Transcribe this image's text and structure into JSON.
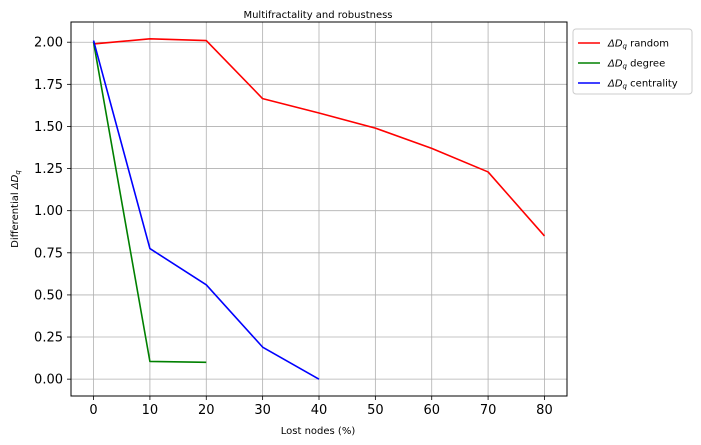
{
  "chart_data": {
    "type": "line",
    "title": "Multifractality and robustness",
    "xlabel": "Lost nodes (%)",
    "ylabel_prefix": "Differential ",
    "ylabel_symbol": "ΔD",
    "ylabel_subscript": "q",
    "xlim": [
      -4,
      84
    ],
    "ylim": [
      -0.1,
      2.12
    ],
    "xticks": [
      0,
      10,
      20,
      30,
      40,
      50,
      60,
      70,
      80
    ],
    "xtick_labels": [
      "0",
      "10",
      "20",
      "30",
      "40",
      "50",
      "60",
      "70",
      "80"
    ],
    "yticks": [
      0.0,
      0.25,
      0.5,
      0.75,
      1.0,
      1.25,
      1.5,
      1.75,
      2.0
    ],
    "ytick_labels": [
      "0.00",
      "0.25",
      "0.50",
      "0.75",
      "1.00",
      "1.25",
      "1.50",
      "1.75",
      "2.00"
    ],
    "grid": true,
    "legend_position": "outside-top-right",
    "series": [
      {
        "name": "random",
        "legend_symbol": "ΔD",
        "legend_subscript": "q",
        "legend_suffix": " random",
        "color": "#ff0000",
        "x": [
          0,
          10,
          20,
          30,
          40,
          50,
          60,
          70,
          80
        ],
        "y": [
          1.99,
          2.02,
          2.01,
          1.665,
          1.58,
          1.49,
          1.37,
          1.23,
          0.85
        ]
      },
      {
        "name": "degree",
        "legend_symbol": "ΔD",
        "legend_subscript": "q",
        "legend_suffix": " degree",
        "color": "#008000",
        "x": [
          0,
          10,
          20
        ],
        "y": [
          2.0,
          0.105,
          0.1
        ]
      },
      {
        "name": "centrality",
        "legend_symbol": "ΔD",
        "legend_subscript": "q",
        "legend_suffix": " centrality",
        "color": "#0000ff",
        "x": [
          0,
          10,
          20,
          30,
          40
        ],
        "y": [
          2.01,
          0.775,
          0.56,
          0.19,
          0.0
        ]
      }
    ]
  }
}
